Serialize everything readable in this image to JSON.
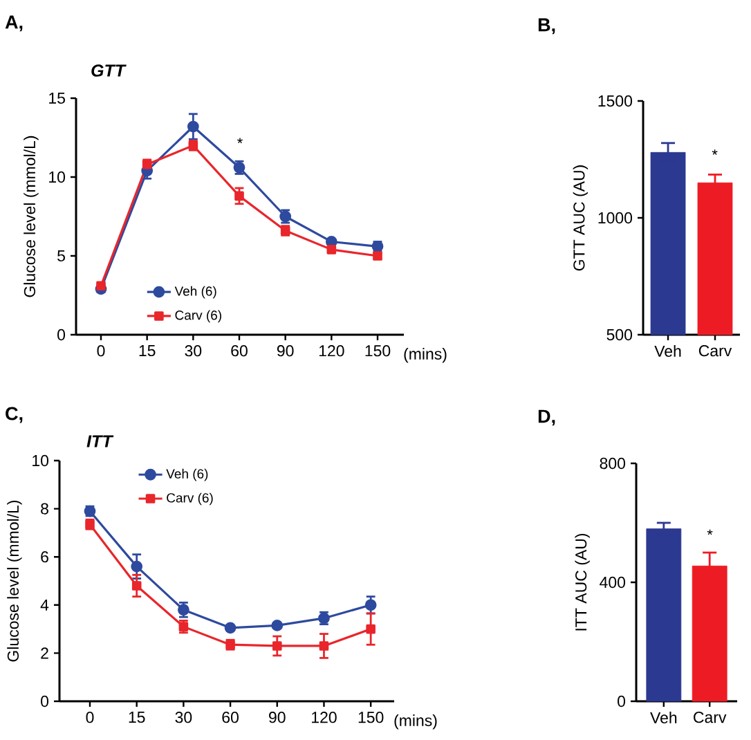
{
  "chart_data": [
    {
      "type": "line",
      "title": "A,",
      "subtitle": "GTT",
      "xlabel": "(mins)",
      "ylabel": "Glucose level (mmol/L)",
      "categories": [
        "0",
        "15",
        "30",
        "60",
        "90",
        "120",
        "150"
      ],
      "ylim": [
        0,
        15
      ],
      "yticks": [
        0,
        5,
        10,
        15
      ],
      "legend": "bottom left",
      "series": [
        {
          "name": "Veh (6)",
          "color": "#2e4a9e",
          "marker": "circle",
          "values": [
            2.9,
            10.4,
            13.2,
            10.6,
            7.5,
            5.9,
            5.6
          ],
          "errors": [
            0.2,
            0.5,
            0.8,
            0.4,
            0.4,
            0.1,
            0.3
          ]
        },
        {
          "name": "Carv (6)",
          "color": "#e8262b",
          "marker": "square",
          "values": [
            3.1,
            10.8,
            12.0,
            8.8,
            6.6,
            5.4,
            5.0
          ],
          "errors": [
            0.1,
            0.3,
            0.3,
            0.5,
            0.3,
            0.1,
            0.2
          ]
        }
      ],
      "annotations": [
        "*"
      ]
    },
    {
      "type": "bar",
      "title": "B,",
      "ylabel": "GTT AUC (AU)",
      "categories": [
        "Veh",
        "Carv"
      ],
      "values": [
        1280,
        1150
      ],
      "errors": [
        40,
        35
      ],
      "colors": [
        "#2b3990",
        "#ed1c24"
      ],
      "ylim": [
        500,
        1500
      ],
      "yticks": [
        500,
        1000,
        1500
      ],
      "annotations": [
        "*"
      ]
    },
    {
      "type": "line",
      "title": "C,",
      "subtitle": "ITT",
      "xlabel": "(mins)",
      "ylabel": "Glucose level (mmol/L)",
      "categories": [
        "0",
        "15",
        "30",
        "60",
        "90",
        "120",
        "150"
      ],
      "ylim": [
        0,
        10
      ],
      "yticks": [
        0,
        2,
        4,
        6,
        8,
        10
      ],
      "legend": "top left",
      "series": [
        {
          "name": "Veh (6)",
          "color": "#2e4a9e",
          "marker": "circle",
          "values": [
            7.9,
            5.6,
            3.8,
            3.05,
            3.15,
            3.45,
            4.0
          ],
          "errors": [
            0.2,
            0.5,
            0.3,
            0.05,
            0.05,
            0.25,
            0.35
          ]
        },
        {
          "name": "Carv (6)",
          "color": "#e8262b",
          "marker": "square",
          "values": [
            7.35,
            4.8,
            3.1,
            2.35,
            2.3,
            2.3,
            3.0
          ],
          "errors": [
            0.2,
            0.45,
            0.25,
            0.2,
            0.4,
            0.5,
            0.65
          ]
        }
      ]
    },
    {
      "type": "bar",
      "title": "D,",
      "ylabel": "ITT AUC (AU)",
      "categories": [
        "Veh",
        "Carv"
      ],
      "values": [
        580,
        455
      ],
      "errors": [
        20,
        45
      ],
      "colors": [
        "#2b3990",
        "#ed1c24"
      ],
      "ylim": [
        0,
        800
      ],
      "yticks": [
        0,
        400,
        800
      ],
      "annotations": [
        "*"
      ]
    }
  ]
}
